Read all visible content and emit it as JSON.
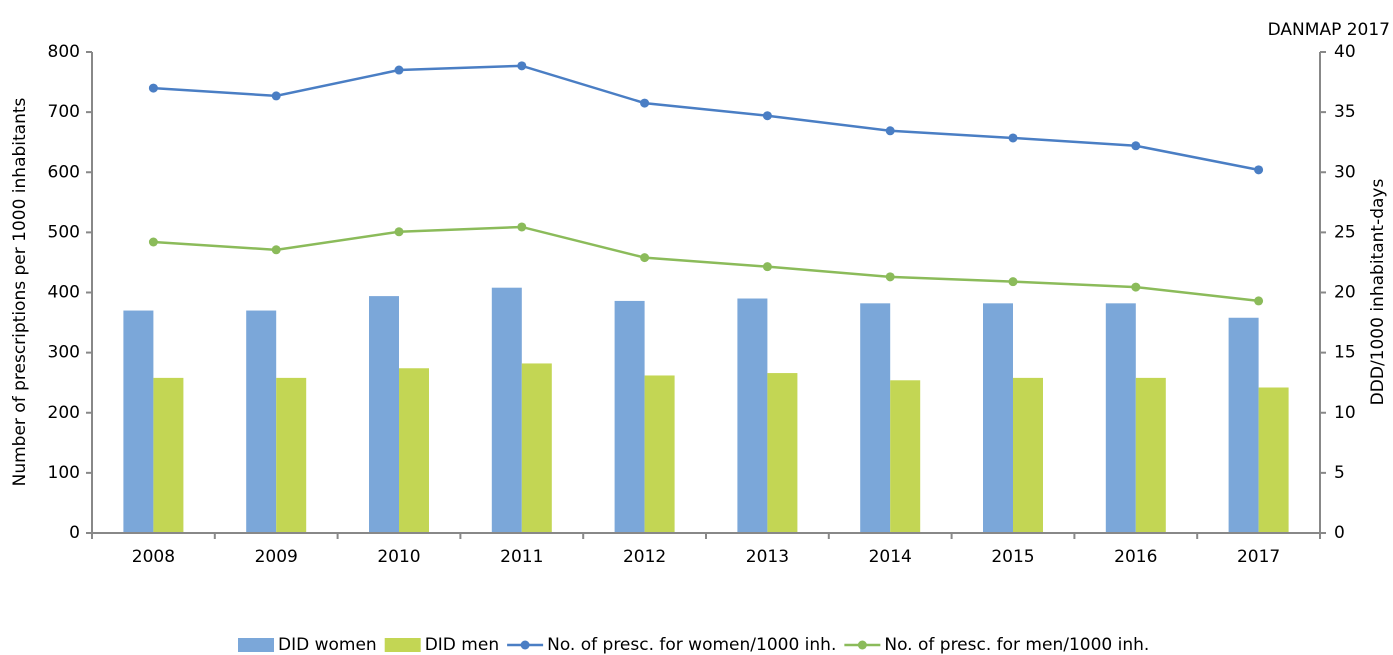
{
  "chart_data": {
    "type": "bar",
    "annotation": "DANMAP 2017",
    "y_label": "Number of prescriptions per 1000 inhabitants",
    "y2_label": "DDD/1000  inhabitant-days",
    "categories": [
      "2008",
      "2009",
      "2010",
      "2011",
      "2012",
      "2013",
      "2014",
      "2015",
      "2016",
      "2017"
    ],
    "ylim": [
      0,
      800
    ],
    "yticks": [
      0,
      100,
      200,
      300,
      400,
      500,
      600,
      700,
      800
    ],
    "y2lim": [
      0,
      40
    ],
    "y2ticks": [
      0,
      5,
      10,
      15,
      20,
      25,
      30,
      35,
      40
    ],
    "series": [
      {
        "name": "DID women",
        "type": "bar",
        "axis": "y2",
        "color": "#7ba7d9",
        "values": [
          18.5,
          18.5,
          19.7,
          20.4,
          19.3,
          19.5,
          19.1,
          19.1,
          19.1,
          17.9
        ]
      },
      {
        "name": "DID men",
        "type": "bar",
        "axis": "y2",
        "color": "#c3d654",
        "values": [
          12.9,
          12.9,
          13.7,
          14.1,
          13.1,
          13.3,
          12.7,
          12.9,
          12.9,
          12.1
        ]
      },
      {
        "name": "No. of presc. for women/1000 inh.",
        "type": "line",
        "color": "#4a7ec4",
        "values": [
          740,
          727,
          770,
          777,
          715,
          694,
          669,
          657,
          644,
          604
        ]
      },
      {
        "name": "No. of presc. for men/1000 inh.",
        "type": "line",
        "color": "#8bbb5a",
        "values": [
          484,
          471,
          501,
          509,
          458,
          443,
          426,
          418,
          409,
          386
        ]
      }
    ]
  }
}
